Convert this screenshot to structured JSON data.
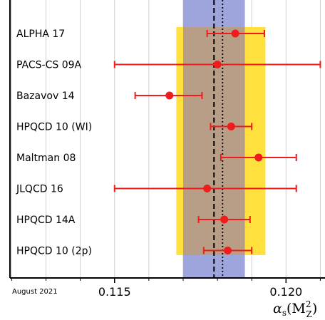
{
  "chart_data": {
    "type": "scatter",
    "xlim": [
      0.11195,
      0.12122
    ],
    "grid": true,
    "xticks": [
      0.115,
      0.12
    ],
    "xtick_labels": [
      "0.115",
      "0.120"
    ],
    "xlabel": "αs(M",
    "xlabel_sub": "Z",
    "xlabel_sup": "2",
    "xlabel_tail": ")",
    "footnote": "August 2021",
    "bands": [
      {
        "name": "blue band",
        "lo": 0.117,
        "hi": 0.1188,
        "color": "#9ea5dc"
      },
      {
        "name": "yellow band",
        "lo": 0.1168,
        "hi": 0.1194,
        "color": "#ffe03c"
      },
      {
        "name": "overlap",
        "lo": 0.117,
        "hi": 0.1188,
        "color": "#b89e86"
      }
    ],
    "ref_lines": [
      {
        "x": 0.1179,
        "style": "dashed"
      },
      {
        "x": 0.11815,
        "style": "dotted"
      }
    ],
    "points": [
      {
        "label": "ALPHA 17",
        "value": 0.11852,
        "err_lo": 0.00082,
        "err_hi": 0.00085
      },
      {
        "label": "PACS-CS 09A",
        "value": 0.118,
        "err_lo": 0.003,
        "err_hi": 0.003
      },
      {
        "label": "Bazavov 14",
        "value": 0.1166,
        "err_lo": 0.001,
        "err_hi": 0.00095
      },
      {
        "label": "HPQCD 10 (WI)",
        "value": 0.1184,
        "err_lo": 0.0006,
        "err_hi": 0.0006
      },
      {
        "label": "Maltman 08",
        "value": 0.1192,
        "err_lo": 0.0011,
        "err_hi": 0.0011
      },
      {
        "label": "JLQCD 16",
        "value": 0.1177,
        "err_lo": 0.0027,
        "err_hi": 0.0026
      },
      {
        "label": "HPQCD 14A",
        "value": 0.1182,
        "err_lo": 0.00075,
        "err_hi": 0.00075
      },
      {
        "label": "HPQCD 10 (2p)",
        "value": 0.1183,
        "err_lo": 0.0007,
        "err_hi": 0.0007
      }
    ],
    "colors": {
      "point": "#ee1c1c",
      "grid": "#d0d0d0",
      "axis": "#000000"
    }
  }
}
